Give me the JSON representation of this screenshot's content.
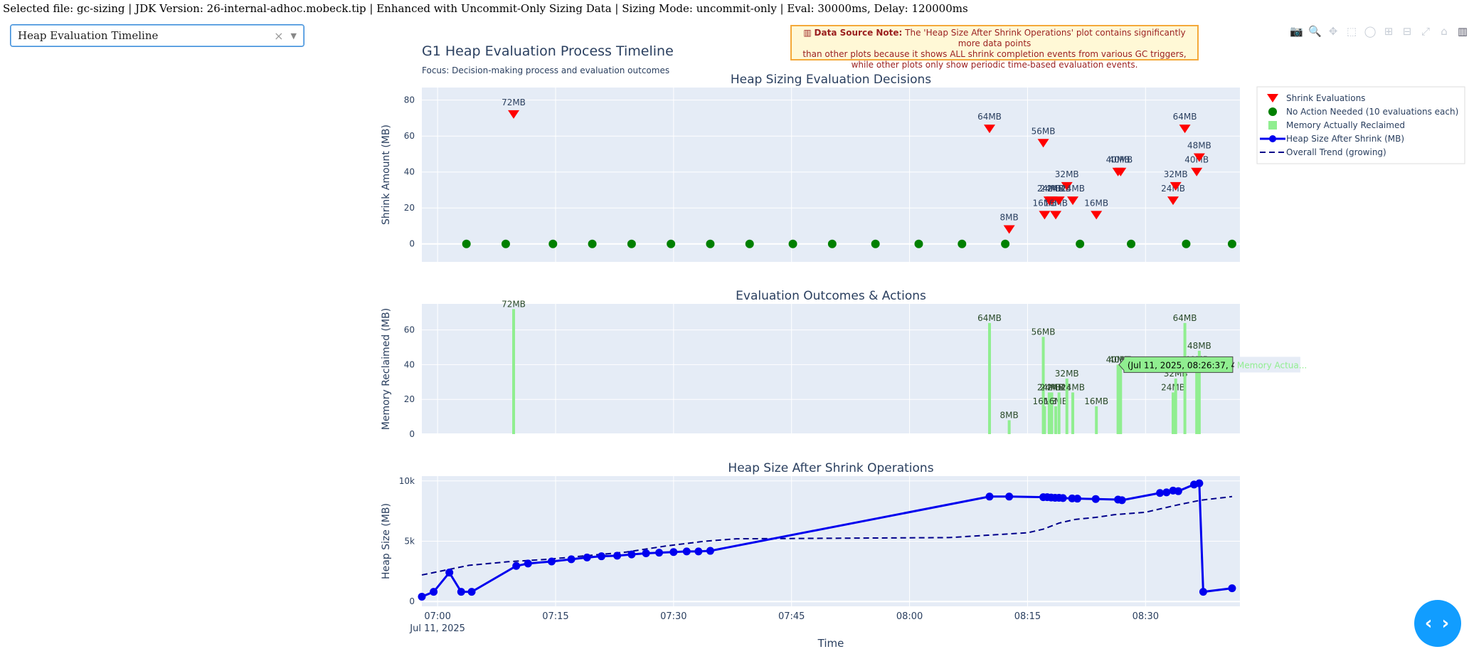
{
  "header": {
    "file_info": "Selected file: gc-sizing | JDK Version: 26-internal-adhoc.mobeck.tip | Enhanced with Uncommit-Only Sizing Data | Sizing Mode: uncommit-only | Eval: 30000ms, Delay: 120000ms"
  },
  "dropdown": {
    "value": "Heap Evaluation Timeline",
    "clear_glyph": "×",
    "caret_glyph": "▼"
  },
  "note": {
    "label": "Data Source Note:",
    "line1": "The 'Heap Size After Shrink Operations' plot contains significantly more data points",
    "line2": "than other plots because it shows ALL shrink completion events from various GC triggers,",
    "line3": "while other plots only show periodic time-based evaluation events.",
    "icon": "chart-icon"
  },
  "modebar": {
    "icons": [
      "camera-icon",
      "zoom-icon",
      "pan-icon",
      "box-select-icon",
      "lasso-icon",
      "zoom-in-icon",
      "zoom-out-icon",
      "autoscale-icon",
      "reset-icon",
      "plotly-logo-icon"
    ],
    "glyphs": [
      "📷",
      "🔍",
      "✥",
      "⬚",
      "◯",
      "⊞",
      "⊟",
      "⤢",
      "⌂",
      "▥"
    ]
  },
  "fab": {
    "glyph": "‹ ›",
    "icon": "code-toggle-icon"
  },
  "colors": {
    "shrink": "#ff0000",
    "noaction": "#008000",
    "reclaim": "#90ee90",
    "heap": "#0000ee",
    "trend": "#00008b",
    "plot_bg": "#e5ecf6"
  },
  "chart_data": [
    {
      "type": "scatter",
      "title": "G1 Heap Evaluation Process Timeline",
      "subtitle": "Focus: Decision-making process and evaluation outcomes",
      "subplot_title": "Heap Sizing Evaluation Decisions",
      "ylabel": "Shrink Amount (MB)",
      "ylim": [
        -10,
        87
      ],
      "yticks": [
        0,
        20,
        40,
        60,
        80
      ],
      "grid": true,
      "series": [
        {
          "name": "Shrink Evaluations",
          "marker": "triangle-down",
          "x": [
            "07:09:40",
            "08:10:10",
            "08:12:40",
            "08:17:00",
            "08:17:10",
            "08:17:45",
            "08:18:05",
            "08:18:35",
            "08:19:00",
            "08:20:00",
            "08:20:45",
            "08:23:45",
            "08:26:30",
            "08:26:50",
            "08:33:30",
            "08:33:50",
            "08:35:00",
            "08:36:30",
            "08:36:50"
          ],
          "y": [
            72,
            64,
            8,
            56,
            16,
            24,
            24,
            16,
            24,
            32,
            24,
            16,
            40,
            40,
            24,
            32,
            64,
            40,
            48
          ],
          "labels": [
            "72MB",
            "64MB",
            "8MB",
            "56MB",
            "16MB",
            "24MB",
            "24MB",
            "16MB",
            "24MB",
            "32MB",
            "24MB",
            "16MB",
            "40MB",
            "40MB",
            "24MB",
            "32MB",
            "64MB",
            "40MB",
            "48MB"
          ]
        },
        {
          "name": "No Action Needed (10 evaluations each)",
          "marker": "circle",
          "x": [
            "07:03:40",
            "07:08:40",
            "07:14:40",
            "07:19:40",
            "07:24:40",
            "07:29:40",
            "07:34:40",
            "07:39:40",
            "07:45:10",
            "07:50:10",
            "07:55:40",
            "08:01:10",
            "08:06:40",
            "08:12:10",
            "08:21:40",
            "08:28:10",
            "08:35:10",
            "08:41:00"
          ],
          "y": [
            0,
            0,
            0,
            0,
            0,
            0,
            0,
            0,
            0,
            0,
            0,
            0,
            0,
            0,
            0,
            0,
            0,
            0
          ]
        }
      ],
      "legend_position": "right"
    },
    {
      "type": "bar",
      "subplot_title": "Evaluation Outcomes & Actions",
      "ylabel": "Memory Reclaimed (MB)",
      "ylim": [
        0,
        75
      ],
      "yticks": [
        0,
        20,
        40,
        60
      ],
      "grid": true,
      "series": [
        {
          "name": "Memory Actually Reclaimed",
          "x": [
            "07:09:40",
            "08:10:10",
            "08:12:40",
            "08:17:00",
            "08:17:10",
            "08:17:45",
            "08:18:05",
            "08:18:35",
            "08:19:00",
            "08:20:00",
            "08:20:45",
            "08:23:45",
            "08:26:30",
            "08:26:50",
            "08:33:30",
            "08:33:50",
            "08:35:00",
            "08:36:30",
            "08:36:50"
          ],
          "values": [
            72,
            64,
            8,
            56,
            16,
            24,
            24,
            16,
            24,
            32,
            24,
            16,
            40,
            40,
            24,
            32,
            64,
            40,
            48
          ],
          "labels": [
            "72MB",
            "64MB",
            "8MB",
            "56MB",
            "16MB",
            "24MB",
            "24MB",
            "16MB",
            "24MB",
            "32MB",
            "24MB",
            "16MB",
            "40MB",
            "40MB",
            "24MB",
            "32MB",
            "64MB",
            "40MB",
            "48MB"
          ]
        }
      ],
      "hover": {
        "text": "(Jul 11, 2025, 08:26:37, 40)",
        "legend_text": "Memory Actua...",
        "x": "08:26:37",
        "y": 40
      }
    },
    {
      "type": "line",
      "subplot_title": "Heap Size After Shrink Operations",
      "xlabel": "Time",
      "ylabel": "Heap Size (MB)",
      "ylim": [
        -400,
        10400
      ],
      "yticks": [
        0,
        5000,
        10000
      ],
      "ytick_labels": [
        "0",
        "5k",
        "10k"
      ],
      "xrange": [
        "06:58:00",
        "08:42:00"
      ],
      "xticks": [
        "07:00",
        "07:15",
        "07:30",
        "07:45",
        "08:00",
        "08:15",
        "08:30"
      ],
      "xtick_date": "Jul 11, 2025",
      "grid": true,
      "series": [
        {
          "name": "Heap Size After Shrink (MB)",
          "marker": "circle-line",
          "x": [
            "06:58:00",
            "06:59:30",
            "07:01:30",
            "07:03:00",
            "07:04:20",
            "07:10:00",
            "07:11:30",
            "07:14:30",
            "07:17:00",
            "07:19:00",
            "07:20:50",
            "07:22:50",
            "07:24:40",
            "07:26:30",
            "07:28:10",
            "07:30:00",
            "07:31:40",
            "07:33:10",
            "07:34:40",
            "08:10:10",
            "08:12:40",
            "08:17:00",
            "08:17:30",
            "08:18:00",
            "08:18:30",
            "08:19:00",
            "08:19:30",
            "08:20:40",
            "08:21:20",
            "08:23:40",
            "08:26:30",
            "08:27:00",
            "08:31:50",
            "08:32:40",
            "08:33:30",
            "08:34:10",
            "08:36:10",
            "08:36:50",
            "08:37:20",
            "08:41:00"
          ],
          "y": [
            400,
            800,
            2400,
            800,
            800,
            2950,
            3150,
            3320,
            3500,
            3650,
            3750,
            3800,
            3900,
            4000,
            4050,
            4100,
            4150,
            4150,
            4200,
            8700,
            8700,
            8650,
            8650,
            8620,
            8600,
            8600,
            8580,
            8550,
            8530,
            8500,
            8450,
            8400,
            9000,
            9050,
            9200,
            9150,
            9700,
            9800,
            800,
            1100
          ]
        },
        {
          "name": "Overall Trend (growing)",
          "marker": "dash",
          "x": [
            "06:58:00",
            "07:04:00",
            "07:09:00",
            "07:14:00",
            "07:19:00",
            "07:24:00",
            "07:29:00",
            "07:34:00",
            "07:38:00",
            "08:05:00",
            "08:10:00",
            "08:15:00",
            "08:17:00",
            "08:19:00",
            "08:21:00",
            "08:24:00",
            "08:26:00",
            "08:30:00",
            "08:34:00",
            "08:37:00",
            "08:41:00"
          ],
          "y": [
            2200,
            3000,
            3300,
            3500,
            3800,
            4100,
            4600,
            5000,
            5200,
            5300,
            5500,
            5700,
            6000,
            6500,
            6800,
            7000,
            7200,
            7400,
            8000,
            8400,
            8700
          ]
        }
      ]
    }
  ]
}
